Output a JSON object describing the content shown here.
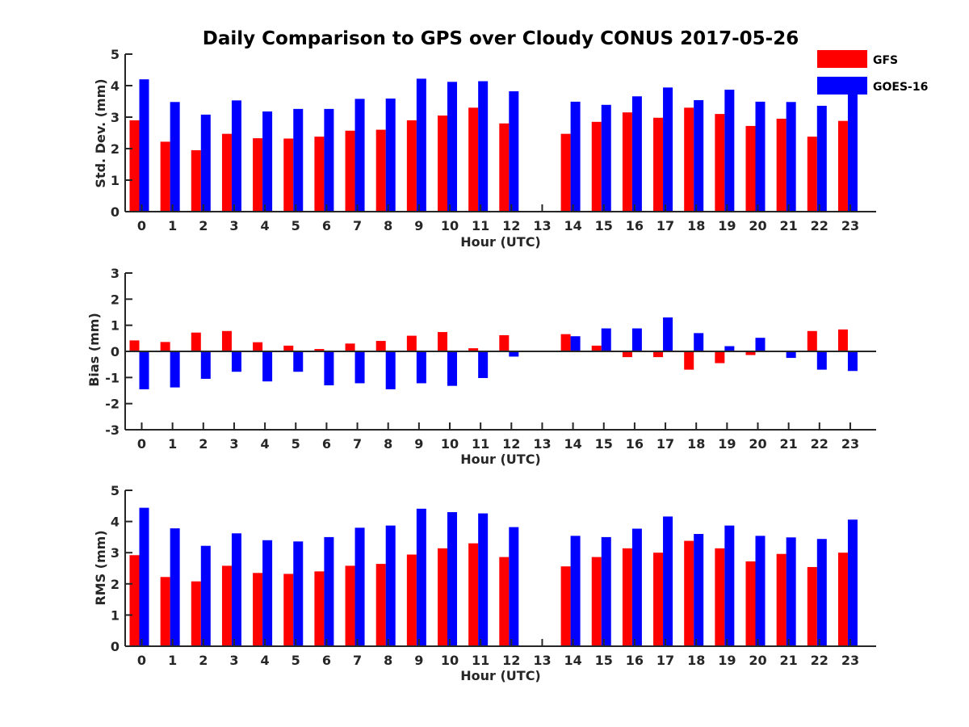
{
  "title": "Daily Comparison to GPS over Cloudy CONUS 2017-05-26",
  "legend": {
    "placement": "top-right",
    "items": [
      {
        "name": "GFS",
        "color": "#ff0000"
      },
      {
        "name": "GOES-16",
        "color": "#0000ff"
      }
    ]
  },
  "chart_data": [
    {
      "type": "bar",
      "xlabel": "Hour (UTC)",
      "ylabel": "Std. Dev. (mm)",
      "ylim": [
        0,
        5
      ],
      "yticks": [
        0,
        1,
        2,
        3,
        4,
        5
      ],
      "categories": [
        "0",
        "1",
        "2",
        "3",
        "4",
        "5",
        "6",
        "7",
        "8",
        "9",
        "10",
        "11",
        "12",
        "13",
        "14",
        "15",
        "16",
        "17",
        "18",
        "19",
        "20",
        "21",
        "22",
        "23"
      ],
      "series": [
        {
          "name": "GFS",
          "color": "#ff0000",
          "values": [
            2.9,
            2.22,
            1.95,
            2.47,
            2.33,
            2.32,
            2.38,
            2.57,
            2.6,
            2.9,
            3.05,
            3.3,
            2.8,
            null,
            2.47,
            2.85,
            3.15,
            2.98,
            3.3,
            3.1,
            2.72,
            2.95,
            2.38,
            2.88
          ]
        },
        {
          "name": "GOES-16",
          "color": "#0000ff",
          "values": [
            4.2,
            3.48,
            3.08,
            3.53,
            3.18,
            3.26,
            3.26,
            3.58,
            3.59,
            4.22,
            4.12,
            4.14,
            3.82,
            null,
            3.49,
            3.39,
            3.66,
            3.94,
            3.54,
            3.87,
            3.49,
            3.48,
            3.36,
            3.9
          ]
        }
      ]
    },
    {
      "type": "bar",
      "xlabel": "Hour (UTC)",
      "ylabel": "Bias (mm)",
      "ylim": [
        -3,
        3
      ],
      "yticks": [
        -3,
        -2,
        -1,
        0,
        1,
        2,
        3
      ],
      "categories": [
        "0",
        "1",
        "2",
        "3",
        "4",
        "5",
        "6",
        "7",
        "8",
        "9",
        "10",
        "11",
        "12",
        "13",
        "14",
        "15",
        "16",
        "17",
        "18",
        "19",
        "20",
        "21",
        "22",
        "23"
      ],
      "series": [
        {
          "name": "GFS",
          "color": "#ff0000",
          "values": [
            0.42,
            0.36,
            0.72,
            0.78,
            0.35,
            0.22,
            0.09,
            0.3,
            0.4,
            0.6,
            0.74,
            0.12,
            0.62,
            null,
            0.66,
            0.22,
            -0.22,
            -0.22,
            -0.7,
            -0.45,
            -0.14,
            0.0,
            0.78,
            0.84
          ]
        },
        {
          "name": "GOES-16",
          "color": "#0000ff",
          "values": [
            -1.45,
            -1.38,
            -1.05,
            -0.78,
            -1.15,
            -0.78,
            -1.3,
            -1.22,
            -1.45,
            -1.22,
            -1.32,
            -1.02,
            -0.2,
            null,
            0.58,
            0.88,
            0.88,
            1.3,
            0.7,
            0.2,
            0.52,
            -0.25,
            -0.7,
            -0.75
          ]
        }
      ]
    },
    {
      "type": "bar",
      "xlabel": "Hour (UTC)",
      "ylabel": "RMS (mm)",
      "ylim": [
        0,
        5
      ],
      "yticks": [
        0,
        1,
        2,
        3,
        4,
        5
      ],
      "categories": [
        "0",
        "1",
        "2",
        "3",
        "4",
        "5",
        "6",
        "7",
        "8",
        "9",
        "10",
        "11",
        "12",
        "13",
        "14",
        "15",
        "16",
        "17",
        "18",
        "19",
        "20",
        "21",
        "22",
        "23"
      ],
      "series": [
        {
          "name": "GFS",
          "color": "#ff0000",
          "values": [
            2.92,
            2.22,
            2.08,
            2.58,
            2.35,
            2.32,
            2.4,
            2.58,
            2.64,
            2.94,
            3.14,
            3.3,
            2.86,
            null,
            2.56,
            2.86,
            3.14,
            3.0,
            3.38,
            3.14,
            2.72,
            2.96,
            2.54,
            3.0
          ]
        },
        {
          "name": "GOES-16",
          "color": "#0000ff",
          "values": [
            4.44,
            3.78,
            3.22,
            3.62,
            3.4,
            3.36,
            3.5,
            3.8,
            3.87,
            4.41,
            4.3,
            4.26,
            3.82,
            null,
            3.54,
            3.5,
            3.77,
            4.16,
            3.6,
            3.87,
            3.54,
            3.49,
            3.44,
            4.06
          ]
        }
      ]
    }
  ]
}
